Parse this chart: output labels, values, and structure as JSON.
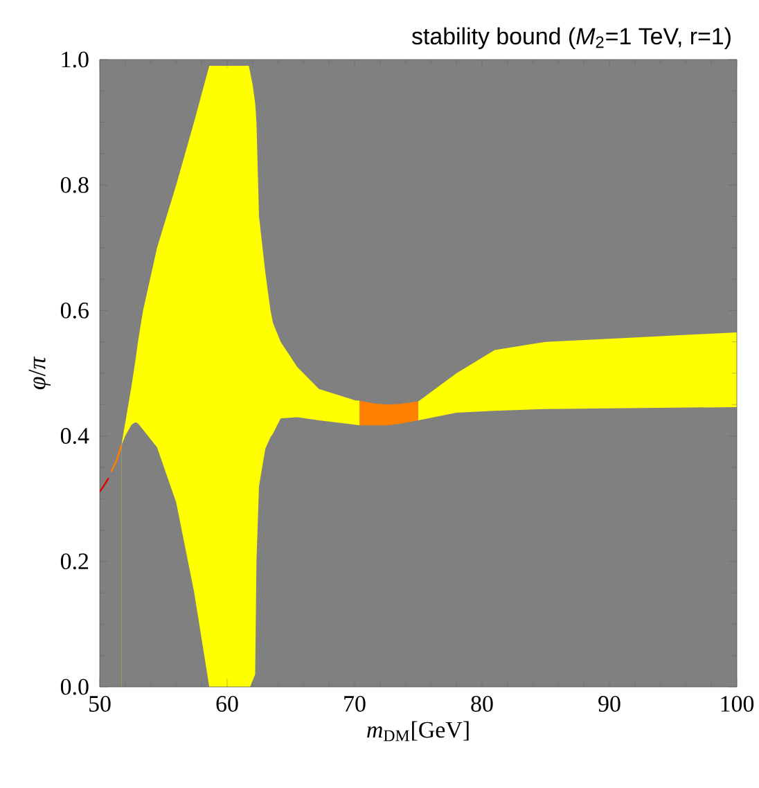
{
  "chart_data": {
    "type": "area",
    "title": "stability bound (*M*$_{2}$=1 TeV, r=1)",
    "xlabel": "*m*$_{DM}$[GeV]",
    "ylabel": "*φ*/*π*",
    "xlim": [
      50,
      100
    ],
    "xticks": [
      50,
      60,
      70,
      80,
      90,
      100
    ],
    "ylim": [
      0,
      1
    ],
    "yticks": [
      {
        "value": 0,
        "label": "0.0"
      },
      {
        "value": 0.2,
        "label": "0.2"
      },
      {
        "value": 0.4,
        "label": "0.4"
      },
      {
        "value": 0.6,
        "label": "0.6"
      },
      {
        "value": 0.8,
        "label": "0.8"
      },
      {
        "value": 1,
        "label": "1.0"
      }
    ],
    "bands": [
      {
        "axis": "y",
        "from": 0,
        "to": 1,
        "color": "#808080"
      }
    ],
    "series": [
      {
        "color": "#ffff00",
        "x": [
          51.7,
          52.5,
          52.8,
          53,
          53.4,
          54.5,
          56,
          57.4,
          58.6,
          61.7,
          61.8,
          62,
          62.2,
          62.3,
          62.5,
          63,
          63.4,
          63.6,
          64.2,
          65.5,
          67.2,
          70,
          70.4
        ],
        "values": [
          0.385,
          0.48,
          0.52,
          0.55,
          0.6,
          0.7,
          0.8,
          0.9,
          0.99,
          0.99,
          0.98,
          0.96,
          0.93,
          0.9,
          0.75,
          0.66,
          0.6,
          0.58,
          0.55,
          0.51,
          0.475,
          0.457,
          0.456
        ]
      },
      {
        "color": "#ff8000",
        "x": [
          70.4,
          71.5,
          72.5,
          73.5,
          75
        ],
        "values": [
          0.456,
          0.452,
          0.45,
          0.451,
          0.455
        ]
      },
      {
        "color": "#ffff00",
        "x": [
          75,
          78,
          81,
          85,
          90,
          100
        ],
        "values": [
          0.455,
          0.5,
          0.537,
          0.55,
          0.555,
          0.565
        ]
      },
      {
        "color": "#808080",
        "x": [
          51.7,
          52,
          52.5,
          52.8,
          53,
          53.4,
          54.5,
          56,
          57.4,
          58.6,
          61.7,
          61.8,
          62,
          62.2,
          62.3,
          62.5,
          63,
          63.4,
          63.6,
          64.2,
          65.5,
          67.2,
          70,
          70.4,
          71.5,
          72.5,
          73.5,
          75,
          78,
          81,
          85,
          90,
          100
        ],
        "values": [
          0.385,
          0.4,
          0.418,
          0.422,
          0.42,
          0.41,
          0.382,
          0.294,
          0.152,
          0,
          0,
          0,
          0.01,
          0.02,
          0.2,
          0.32,
          0.38,
          0.398,
          0.404,
          0.428,
          0.43,
          0.425,
          0.418,
          0.417,
          0.417,
          0.417,
          0.419,
          0.425,
          0.437,
          0.44,
          0.443,
          0.444,
          0.446
        ]
      },
      {
        "type": "line",
        "color": "#e00000",
        "x": [
          50,
          50.3,
          50.7
        ],
        "values": [
          0.311,
          0.32,
          0.333
        ]
      },
      {
        "type": "line",
        "color": "#ff8000",
        "x": [
          50.9,
          51.3,
          51.5,
          51.7
        ],
        "values": [
          0.343,
          0.36,
          0.372,
          0.385
        ]
      }
    ]
  }
}
